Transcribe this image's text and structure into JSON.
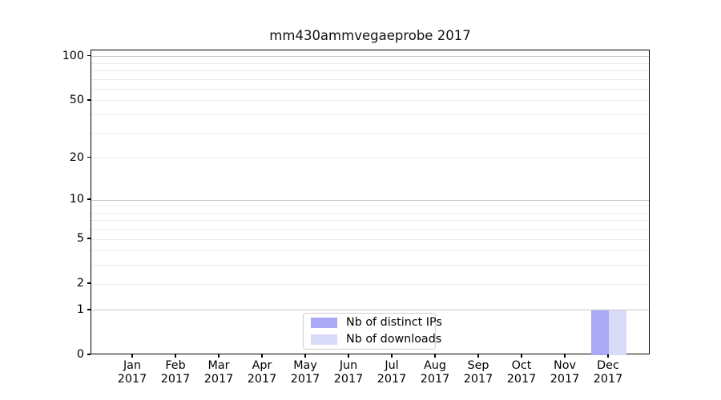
{
  "chart_data": {
    "type": "bar",
    "title": "mm430ammvegaeprobe 2017",
    "categories": [
      {
        "month": "Jan",
        "year": "2017"
      },
      {
        "month": "Feb",
        "year": "2017"
      },
      {
        "month": "Mar",
        "year": "2017"
      },
      {
        "month": "Apr",
        "year": "2017"
      },
      {
        "month": "May",
        "year": "2017"
      },
      {
        "month": "Jun",
        "year": "2017"
      },
      {
        "month": "Jul",
        "year": "2017"
      },
      {
        "month": "Aug",
        "year": "2017"
      },
      {
        "month": "Sep",
        "year": "2017"
      },
      {
        "month": "Oct",
        "year": "2017"
      },
      {
        "month": "Nov",
        "year": "2017"
      },
      {
        "month": "Dec",
        "year": "2017"
      }
    ],
    "series": [
      {
        "name": "Nb of distinct IPs",
        "color": "#a9a9f5",
        "values": [
          0,
          0,
          0,
          0,
          0,
          0,
          0,
          0,
          0,
          0,
          0,
          1
        ]
      },
      {
        "name": "Nb of downloads",
        "color": "#d9d9f8",
        "values": [
          0,
          0,
          0,
          0,
          0,
          0,
          0,
          0,
          0,
          0,
          0,
          1
        ]
      }
    ],
    "yscale": "log1p",
    "ylim": [
      0,
      110
    ],
    "yticks": [
      0,
      1,
      2,
      5,
      10,
      20,
      50,
      100
    ],
    "gridlines": {
      "decade": [
        1,
        10,
        100
      ],
      "minor": [
        2,
        3,
        4,
        5,
        6,
        7,
        8,
        9,
        20,
        30,
        40,
        50,
        60,
        70,
        80,
        90
      ]
    },
    "grid": true,
    "legend_position": "lower center",
    "xlabel": "",
    "ylabel": ""
  },
  "colors": {
    "bar_distinct_ips": "#a9a9f5",
    "bar_downloads": "#d9d9f8",
    "grid_minor": "#ececec",
    "grid_decade": "#c9c9c9",
    "axis": "#000000",
    "legend_border": "#cfcfcf"
  }
}
